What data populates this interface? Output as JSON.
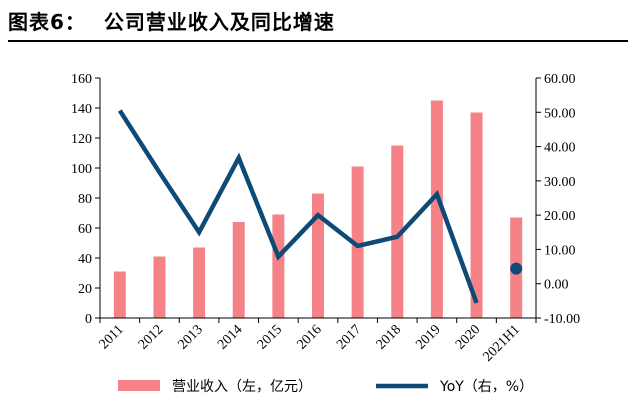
{
  "figure": {
    "number": "图表6：",
    "title": "公司营业收入及同比增速"
  },
  "chart_data": {
    "type": "bar",
    "categories": [
      "2011",
      "2012",
      "2013",
      "2014",
      "2015",
      "2016",
      "2017",
      "2018",
      "2019",
      "2020",
      "2021H1"
    ],
    "series": [
      {
        "name": "营业收入（左，亿元）",
        "type": "bar",
        "axis": "left",
        "color": "#F48287",
        "values": [
          31,
          41,
          47,
          64,
          69,
          83,
          101,
          115,
          145,
          137,
          67
        ]
      },
      {
        "name": "YoY（右，%）",
        "type": "line",
        "axis": "right",
        "color": "#0E4A76",
        "values": [
          50.5,
          32.5,
          15.0,
          36.7,
          7.9,
          20.0,
          11.0,
          13.7,
          26.1,
          -5.6,
          4.4
        ],
        "line_break_before_last": true
      }
    ],
    "left_axis": {
      "min": 0,
      "max": 160,
      "step": 20,
      "tick_labels": [
        "0",
        "20",
        "40",
        "60",
        "80",
        "100",
        "120",
        "140",
        "160"
      ]
    },
    "right_axis": {
      "min": -10,
      "max": 60,
      "step": 10,
      "tick_labels": [
        "-10.00",
        "0.00",
        "10.00",
        "20.00",
        "30.00",
        "40.00",
        "50.00",
        "60.00"
      ]
    },
    "grid": false,
    "legend_position": "bottom"
  }
}
